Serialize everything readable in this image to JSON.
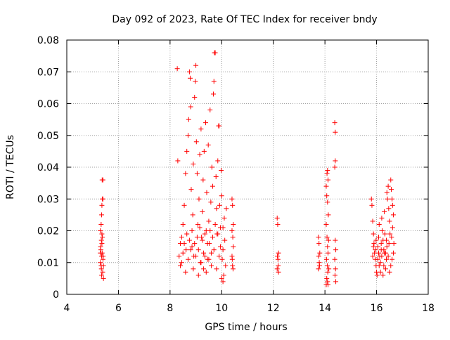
{
  "chart_data": {
    "type": "scatter",
    "title": "Day 092 of 2023, Rate Of TEC Index for receiver bndy",
    "xlabel": "GPS time / hours",
    "ylabel": "ROTI / TECUs",
    "xlim": [
      4,
      18
    ],
    "ylim": [
      0,
      0.08
    ],
    "xticks": [
      4,
      6,
      8,
      10,
      12,
      14,
      16,
      18
    ],
    "xtick_labels": [
      "4",
      "6",
      "8",
      "10",
      "12",
      "14",
      "16",
      "18"
    ],
    "yticks": [
      0,
      0.01,
      0.02,
      0.03,
      0.04,
      0.05,
      0.06,
      0.07,
      0.08
    ],
    "ytick_labels": [
      "0",
      "0.01",
      "0.02",
      "0.03",
      "0.04",
      "0.05",
      "0.06",
      "0.07",
      "0.08"
    ],
    "grid": true,
    "legend": "none",
    "marker": "+",
    "color": "#ff0000",
    "series": [
      {
        "points": [
          [
            5.3,
            0.01
          ],
          [
            5.32,
            0.014
          ],
          [
            5.35,
            0.012
          ],
          [
            5.38,
            0.018
          ],
          [
            5.34,
            0.008
          ],
          [
            5.36,
            0.016
          ],
          [
            5.4,
            0.011
          ],
          [
            5.3,
            0.02
          ],
          [
            5.33,
            0.022
          ],
          [
            5.37,
            0.013
          ],
          [
            5.35,
            0.025
          ],
          [
            5.38,
            0.03
          ],
          [
            5.4,
            0.03
          ],
          [
            5.37,
            0.036
          ],
          [
            5.4,
            0.036
          ],
          [
            5.36,
            0.028
          ],
          [
            5.33,
            0.009
          ],
          [
            5.39,
            0.007
          ],
          [
            5.42,
            0.005
          ],
          [
            5.31,
            0.015
          ],
          [
            5.34,
            0.017
          ],
          [
            5.41,
            0.012
          ],
          [
            5.36,
            0.019
          ],
          [
            5.3,
            0.013
          ],
          [
            5.42,
            0.009
          ],
          [
            5.35,
            0.006
          ],
          [
            8.28,
            0.071
          ],
          [
            8.3,
            0.042
          ],
          [
            8.35,
            0.012
          ],
          [
            8.4,
            0.016
          ],
          [
            8.45,
            0.01
          ],
          [
            8.5,
            0.022
          ],
          [
            8.55,
            0.028
          ],
          [
            8.6,
            0.038
          ],
          [
            8.62,
            0.014
          ],
          [
            8.65,
            0.045
          ],
          [
            8.7,
            0.05
          ],
          [
            8.72,
            0.055
          ],
          [
            8.75,
            0.07
          ],
          [
            8.78,
            0.068
          ],
          [
            8.8,
            0.059
          ],
          [
            8.82,
            0.033
          ],
          [
            8.85,
            0.015
          ],
          [
            8.88,
            0.025
          ],
          [
            8.9,
            0.041
          ],
          [
            8.92,
            0.012
          ],
          [
            8.95,
            0.062
          ],
          [
            8.98,
            0.067
          ],
          [
            9.0,
            0.072
          ],
          [
            9.02,
            0.048
          ],
          [
            9.05,
            0.038
          ],
          [
            9.08,
            0.022
          ],
          [
            9.1,
            0.014
          ],
          [
            9.12,
            0.03
          ],
          [
            9.15,
            0.044
          ],
          [
            9.18,
            0.01
          ],
          [
            9.2,
            0.052
          ],
          [
            9.22,
            0.018
          ],
          [
            9.25,
            0.026
          ],
          [
            9.28,
            0.036
          ],
          [
            9.3,
            0.008
          ],
          [
            9.32,
            0.045
          ],
          [
            9.35,
            0.012
          ],
          [
            9.38,
            0.054
          ],
          [
            9.4,
            0.02
          ],
          [
            9.42,
            0.032
          ],
          [
            9.45,
            0.011
          ],
          [
            9.48,
            0.047
          ],
          [
            9.5,
            0.023
          ],
          [
            9.52,
            0.016
          ],
          [
            9.55,
            0.058
          ],
          [
            9.58,
            0.029
          ],
          [
            9.6,
            0.013
          ],
          [
            9.62,
            0.04
          ],
          [
            9.65,
            0.034
          ],
          [
            9.68,
            0.063
          ],
          [
            9.7,
            0.067
          ],
          [
            9.72,
            0.076
          ],
          [
            9.75,
            0.076
          ],
          [
            9.78,
            0.037
          ],
          [
            9.8,
            0.027
          ],
          [
            9.82,
            0.019
          ],
          [
            9.85,
            0.042
          ],
          [
            9.88,
            0.053
          ],
          [
            9.9,
            0.053
          ],
          [
            9.92,
            0.028
          ],
          [
            9.95,
            0.015
          ],
          [
            9.98,
            0.039
          ],
          [
            10.0,
            0.031
          ],
          [
            10.02,
            0.011
          ],
          [
            10.05,
            0.021
          ],
          [
            10.08,
            0.006
          ],
          [
            10.1,
            0.024
          ],
          [
            10.12,
            0.017
          ],
          [
            10.15,
            0.009
          ],
          [
            10.18,
            0.027
          ],
          [
            8.4,
            0.009
          ],
          [
            8.5,
            0.013
          ],
          [
            8.6,
            0.007
          ],
          [
            8.7,
            0.011
          ],
          [
            8.8,
            0.014
          ],
          [
            8.9,
            0.008
          ],
          [
            9.0,
            0.012
          ],
          [
            9.1,
            0.006
          ],
          [
            9.2,
            0.01
          ],
          [
            9.3,
            0.013
          ],
          [
            9.4,
            0.007
          ],
          [
            9.5,
            0.011
          ],
          [
            9.6,
            0.009
          ],
          [
            9.7,
            0.014
          ],
          [
            9.8,
            0.008
          ],
          [
            9.9,
            0.012
          ],
          [
            10.0,
            0.005
          ],
          [
            10.05,
            0.004
          ],
          [
            8.45,
            0.018
          ],
          [
            8.55,
            0.016
          ],
          [
            8.65,
            0.019
          ],
          [
            8.75,
            0.017
          ],
          [
            8.85,
            0.02
          ],
          [
            8.95,
            0.016
          ],
          [
            9.05,
            0.018
          ],
          [
            9.15,
            0.021
          ],
          [
            9.25,
            0.017
          ],
          [
            9.35,
            0.019
          ],
          [
            9.45,
            0.016
          ],
          [
            9.55,
            0.02
          ],
          [
            9.65,
            0.018
          ],
          [
            9.75,
            0.022
          ],
          [
            9.85,
            0.019
          ],
          [
            9.95,
            0.021
          ],
          [
            10.05,
            0.014
          ],
          [
            10.4,
            0.03
          ],
          [
            10.42,
            0.028
          ],
          [
            10.45,
            0.022
          ],
          [
            10.4,
            0.02
          ],
          [
            10.43,
            0.018
          ],
          [
            10.45,
            0.015
          ],
          [
            10.4,
            0.012
          ],
          [
            10.42,
            0.009
          ],
          [
            10.44,
            0.008
          ],
          [
            10.41,
            0.011
          ],
          [
            12.15,
            0.024
          ],
          [
            12.17,
            0.022
          ],
          [
            12.2,
            0.013
          ],
          [
            12.16,
            0.012
          ],
          [
            12.18,
            0.011
          ],
          [
            12.19,
            0.009
          ],
          [
            12.15,
            0.008
          ],
          [
            12.2,
            0.007
          ],
          [
            13.75,
            0.018
          ],
          [
            13.77,
            0.016
          ],
          [
            13.8,
            0.013
          ],
          [
            13.76,
            0.012
          ],
          [
            13.78,
            0.01
          ],
          [
            13.79,
            0.009
          ],
          [
            13.75,
            0.008
          ],
          [
            14.05,
            0.034
          ],
          [
            14.08,
            0.038
          ],
          [
            14.1,
            0.039
          ],
          [
            14.12,
            0.036
          ],
          [
            14.07,
            0.031
          ],
          [
            14.1,
            0.029
          ],
          [
            14.13,
            0.025
          ],
          [
            14.05,
            0.022
          ],
          [
            14.08,
            0.018
          ],
          [
            14.1,
            0.015
          ],
          [
            14.12,
            0.013
          ],
          [
            14.06,
            0.011
          ],
          [
            14.09,
            0.009
          ],
          [
            14.11,
            0.007
          ],
          [
            14.07,
            0.005
          ],
          [
            14.1,
            0.004
          ],
          [
            14.05,
            0.003
          ],
          [
            14.12,
            0.003
          ],
          [
            14.15,
            0.008
          ],
          [
            14.14,
            0.017
          ],
          [
            14.38,
            0.054
          ],
          [
            14.4,
            0.051
          ],
          [
            14.4,
            0.042
          ],
          [
            14.38,
            0.04
          ],
          [
            14.4,
            0.017
          ],
          [
            14.42,
            0.014
          ],
          [
            14.38,
            0.011
          ],
          [
            14.41,
            0.008
          ],
          [
            14.39,
            0.006
          ],
          [
            14.42,
            0.004
          ],
          [
            15.8,
            0.03
          ],
          [
            15.82,
            0.028
          ],
          [
            15.85,
            0.023
          ],
          [
            15.88,
            0.019
          ],
          [
            15.9,
            0.016
          ],
          [
            15.92,
            0.013
          ],
          [
            15.95,
            0.011
          ],
          [
            15.98,
            0.009
          ],
          [
            16.0,
            0.007
          ],
          [
            16.02,
            0.006
          ],
          [
            16.05,
            0.015
          ],
          [
            16.08,
            0.018
          ],
          [
            16.1,
            0.022
          ],
          [
            16.12,
            0.012
          ],
          [
            16.15,
            0.01
          ],
          [
            16.18,
            0.014
          ],
          [
            16.2,
            0.024
          ],
          [
            16.22,
            0.02
          ],
          [
            16.25,
            0.017
          ],
          [
            16.28,
            0.009
          ],
          [
            16.3,
            0.026
          ],
          [
            16.32,
            0.019
          ],
          [
            16.35,
            0.013
          ],
          [
            16.38,
            0.011
          ],
          [
            16.4,
            0.032
          ],
          [
            16.42,
            0.03
          ],
          [
            16.45,
            0.034
          ],
          [
            16.47,
            0.027
          ],
          [
            16.5,
            0.023
          ],
          [
            16.52,
            0.019
          ],
          [
            16.55,
            0.036
          ],
          [
            16.57,
            0.033
          ],
          [
            16.6,
            0.03
          ],
          [
            16.62,
            0.028
          ],
          [
            16.65,
            0.025
          ],
          [
            16.67,
            0.016
          ],
          [
            16.6,
            0.011
          ],
          [
            16.55,
            0.009
          ],
          [
            16.5,
            0.007
          ],
          [
            16.45,
            0.012
          ],
          [
            16.35,
            0.008
          ],
          [
            16.25,
            0.006
          ],
          [
            16.15,
            0.007
          ],
          [
            16.05,
            0.011
          ],
          [
            15.95,
            0.014
          ],
          [
            15.85,
            0.012
          ],
          [
            16.4,
            0.015
          ],
          [
            16.3,
            0.013
          ],
          [
            16.2,
            0.012
          ],
          [
            16.1,
            0.009
          ],
          [
            16.62,
            0.021
          ],
          [
            16.58,
            0.018
          ],
          [
            16.48,
            0.016
          ],
          [
            16.38,
            0.017
          ],
          [
            16.28,
            0.014
          ],
          [
            16.18,
            0.016
          ],
          [
            16.08,
            0.013
          ],
          [
            15.98,
            0.017
          ],
          [
            15.88,
            0.015
          ],
          [
            16.65,
            0.013
          ]
        ]
      }
    ]
  }
}
